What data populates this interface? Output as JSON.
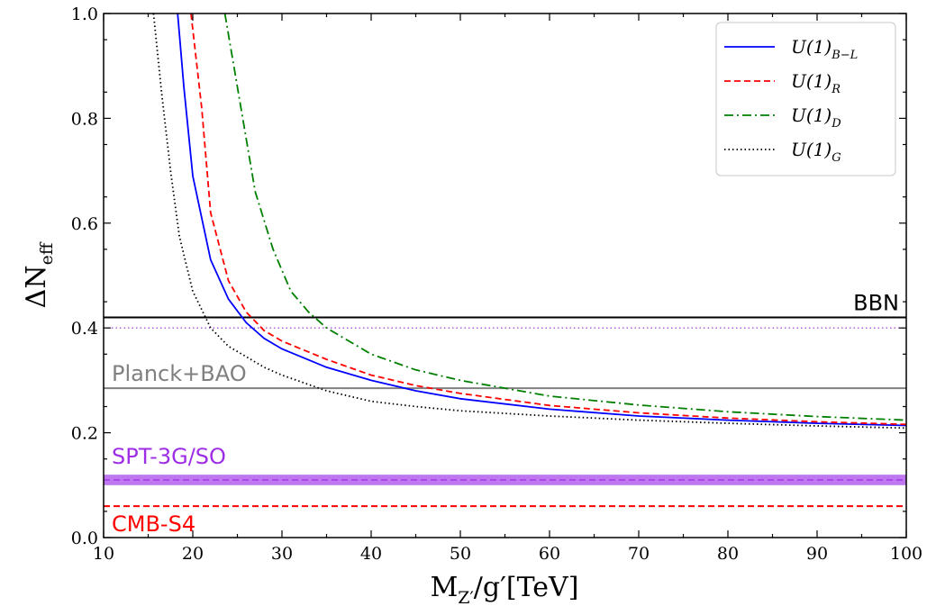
{
  "chart_data": {
    "type": "line",
    "xlabel": {
      "main": "M",
      "sub": "Z′",
      "rest": "/g′[TeV]"
    },
    "ylabel": {
      "main": "ΔN",
      "sub": "eff"
    },
    "xlim": [
      10,
      100
    ],
    "ylim": [
      0.0,
      1.0
    ],
    "xticks": [
      "10",
      "20",
      "30",
      "40",
      "50",
      "60",
      "70",
      "80",
      "90",
      "100"
    ],
    "yticks": [
      "0.0",
      "0.2",
      "0.4",
      "0.6",
      "0.8",
      "1.0"
    ],
    "grid": false,
    "legend_position": "top-right",
    "series": [
      {
        "name": "U(1)",
        "sub": "B−L",
        "color": "#0000ff",
        "dash": "solid",
        "x": [
          18.3,
          19,
          20,
          22,
          24,
          26,
          28,
          30,
          35,
          40,
          45,
          50,
          60,
          70,
          80,
          90,
          100
        ],
        "y": [
          1.0,
          0.86,
          0.69,
          0.53,
          0.455,
          0.41,
          0.38,
          0.36,
          0.325,
          0.3,
          0.28,
          0.265,
          0.245,
          0.232,
          0.224,
          0.218,
          0.214
        ]
      },
      {
        "name": "U(1)",
        "sub": "R",
        "color": "#ff0000",
        "dash": "dashed",
        "x": [
          19.8,
          21,
          22,
          24,
          26,
          28,
          30,
          35,
          40,
          45,
          50,
          60,
          70,
          80,
          90,
          100
        ],
        "y": [
          1.0,
          0.82,
          0.62,
          0.49,
          0.43,
          0.395,
          0.375,
          0.34,
          0.31,
          0.29,
          0.275,
          0.252,
          0.238,
          0.228,
          0.221,
          0.216
        ]
      },
      {
        "name": "U(1)",
        "sub": "D",
        "color": "#007f00",
        "dash": "dashdot",
        "x": [
          23.6,
          25,
          27,
          29,
          31,
          33,
          35,
          40,
          45,
          50,
          60,
          70,
          80,
          90,
          100
        ],
        "y": [
          1.0,
          0.86,
          0.66,
          0.55,
          0.47,
          0.43,
          0.4,
          0.35,
          0.32,
          0.3,
          0.27,
          0.253,
          0.24,
          0.231,
          0.224
        ]
      },
      {
        "name": "U(1)",
        "sub": "G",
        "color": "#000000",
        "dash": "dotted",
        "x": [
          15.6,
          16.5,
          17.5,
          18.5,
          20,
          22,
          24,
          26,
          28,
          30,
          35,
          40,
          45,
          50,
          60,
          70,
          80,
          90,
          100
        ],
        "y": [
          1.0,
          0.85,
          0.7,
          0.575,
          0.47,
          0.4,
          0.365,
          0.345,
          0.325,
          0.31,
          0.28,
          0.26,
          0.25,
          0.242,
          0.232,
          0.224,
          0.218,
          0.213,
          0.209
        ]
      }
    ],
    "bands": [
      {
        "label": "BBN",
        "y": 0.42,
        "color": "#000000",
        "style": "solid",
        "label_color": "#000000"
      },
      {
        "label": "Planck+BAO",
        "y": 0.285,
        "color": "#808080",
        "style": "solid",
        "label_color": "#808080"
      },
      {
        "label": "SPT-3G/SO",
        "y_lo": 0.1,
        "y_hi": 0.12,
        "color": "#9d2ee6",
        "style": "band",
        "label_color": "#9d2ee6"
      },
      {
        "label": "CMB-S4",
        "y": 0.06,
        "color": "#ff0000",
        "style": "dashed",
        "label_color": "#ff0000"
      }
    ],
    "extra_lines": [
      {
        "y": 0.4,
        "color": "#b25fe0",
        "style": "dotted"
      }
    ]
  }
}
